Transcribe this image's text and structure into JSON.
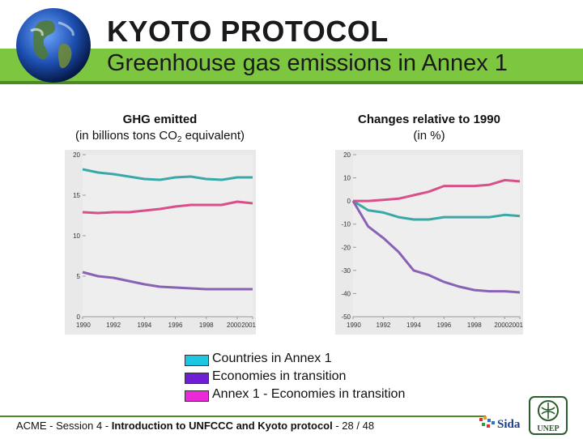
{
  "slide": {
    "title": "KYOTO PROTOCOL",
    "subtitle": "Greenhouse gas emissions in Annex 1"
  },
  "left_header": {
    "line1": "GHG emitted",
    "line2_pre": "(in billions tons CO",
    "line2_sub": "2",
    "line2_post": " equivalent)"
  },
  "right_header": {
    "line1": "Changes relative to 1990",
    "line2": "(in %)"
  },
  "legend": [
    {
      "label": "Countries in Annex 1",
      "color": "#1cc6e0"
    },
    {
      "label": "Economies in transition",
      "color": "#6f1ed6"
    },
    {
      "label": "Annex 1 - Economies in transition",
      "color": "#ea2ad7"
    }
  ],
  "footer": {
    "prefix": "ACME - Session 4 - ",
    "bold": "Introduction to UNFCCC and Kyoto protocol",
    "suffix": " - 28 / 48"
  },
  "logos": {
    "sida": "Sida",
    "unep": "UNEP"
  },
  "chart_data": [
    {
      "type": "line",
      "title": "",
      "x": [
        1990,
        1991,
        1992,
        1993,
        1994,
        1995,
        1996,
        1997,
        1998,
        1999,
        2000,
        2001
      ],
      "xticks": [
        "1990",
        "1992",
        "1994",
        "1996",
        "1998",
        "2000",
        "2001"
      ],
      "ylim": [
        0,
        20
      ],
      "yticks": [
        "20",
        "15",
        "10",
        "5",
        "0"
      ],
      "series": [
        {
          "name": "Countries in Annex 1",
          "color": "#3aa8a8",
          "values": [
            18.2,
            17.8,
            17.6,
            17.3,
            17.0,
            16.9,
            17.2,
            17.3,
            17.0,
            16.9,
            17.2,
            17.2
          ]
        },
        {
          "name": "Annex 1 - Economies in transition",
          "color": "#d94f8a",
          "values": [
            12.9,
            12.8,
            12.9,
            12.9,
            13.1,
            13.3,
            13.6,
            13.8,
            13.8,
            13.8,
            14.2,
            14.0
          ]
        },
        {
          "name": "Economies in transition",
          "color": "#8a62b5",
          "values": [
            5.5,
            5.0,
            4.8,
            4.4,
            4.0,
            3.7,
            3.6,
            3.5,
            3.4,
            3.4,
            3.4,
            3.4
          ]
        }
      ]
    },
    {
      "type": "line",
      "title": "",
      "x": [
        1990,
        1991,
        1992,
        1993,
        1994,
        1995,
        1996,
        1997,
        1998,
        1999,
        2000,
        2001
      ],
      "xticks": [
        "1990",
        "1992",
        "1994",
        "1996",
        "1998",
        "2000",
        "2001"
      ],
      "ylim": [
        -50,
        20
      ],
      "yticks": [
        "20",
        "10",
        "0",
        "-10",
        "-20",
        "-30",
        "-40",
        "-50"
      ],
      "series": [
        {
          "name": "Countries in Annex 1",
          "color": "#3aa8a8",
          "values": [
            0,
            -4,
            -5,
            -7,
            -8,
            -8,
            -7,
            -7,
            -7,
            -7,
            -6,
            -6.5
          ]
        },
        {
          "name": "Annex 1 - Economies in transition",
          "color": "#d94f8a",
          "values": [
            0,
            0,
            0.5,
            1,
            2.5,
            4,
            6.5,
            6.5,
            6.5,
            7,
            9,
            8.5
          ]
        },
        {
          "name": "Economies in transition",
          "color": "#8a62b5",
          "values": [
            0,
            -11,
            -16,
            -22,
            -30,
            -32,
            -35,
            -37,
            -38.5,
            -39,
            -39,
            -39.5
          ]
        }
      ]
    }
  ]
}
